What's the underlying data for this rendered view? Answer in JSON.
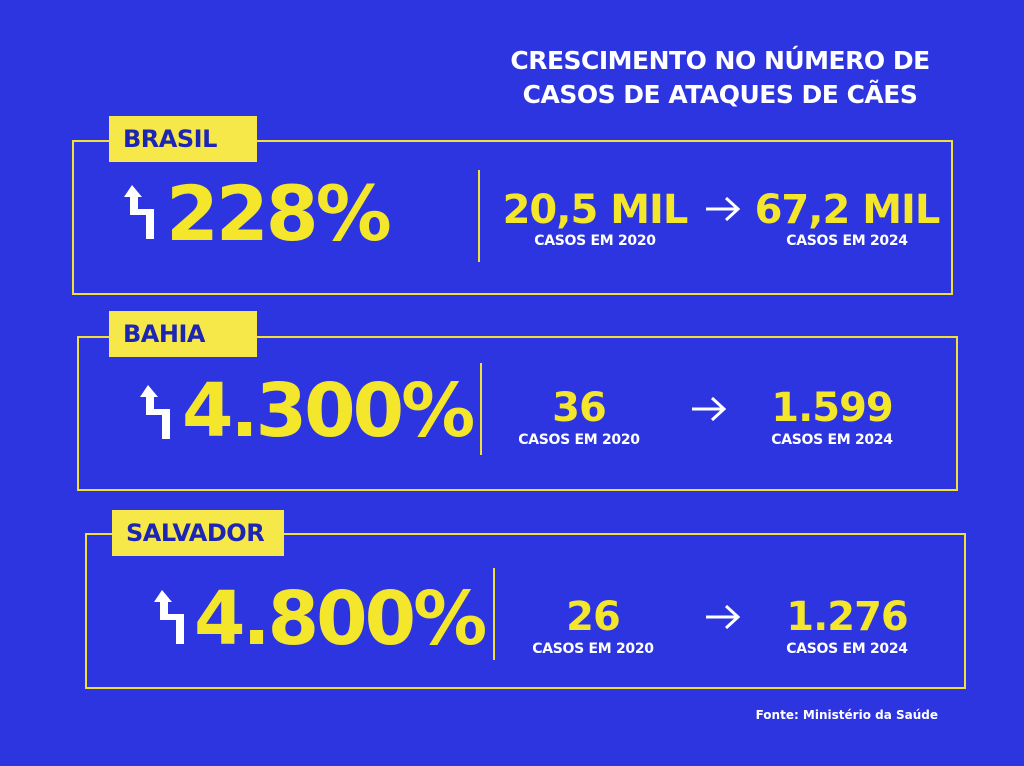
{
  "title": {
    "line1": "CRESCIMENTO NO NÚMERO DE",
    "line2": "CASOS DE ATAQUES DE CÃES"
  },
  "cards": [
    {
      "region": "BRASIL",
      "growth": "228%",
      "value_2020": "20,5 MIL",
      "caption_2020": "CASOS EM 2020",
      "value_2024": "67,2 MIL",
      "caption_2024": "CASOS EM 2024"
    },
    {
      "region": "BAHIA",
      "growth": "4.300%",
      "value_2020": "36",
      "caption_2020": "CASOS EM 2020",
      "value_2024": "1.599",
      "caption_2024": "CASOS EM 2024"
    },
    {
      "region": "SALVADOR",
      "growth": "4.800%",
      "value_2020": "26",
      "caption_2020": "CASOS EM 2020",
      "value_2024": "1.276",
      "caption_2024": "CASOS EM 2024"
    }
  ],
  "source": "Fonte: Ministério da Saúde",
  "colors": {
    "background": "#2c35e0",
    "accent": "#f4e62a",
    "text": "#ffffff"
  },
  "icons": {
    "growth": "zigzag-up-arrow-icon",
    "transition": "right-arrow-icon"
  }
}
